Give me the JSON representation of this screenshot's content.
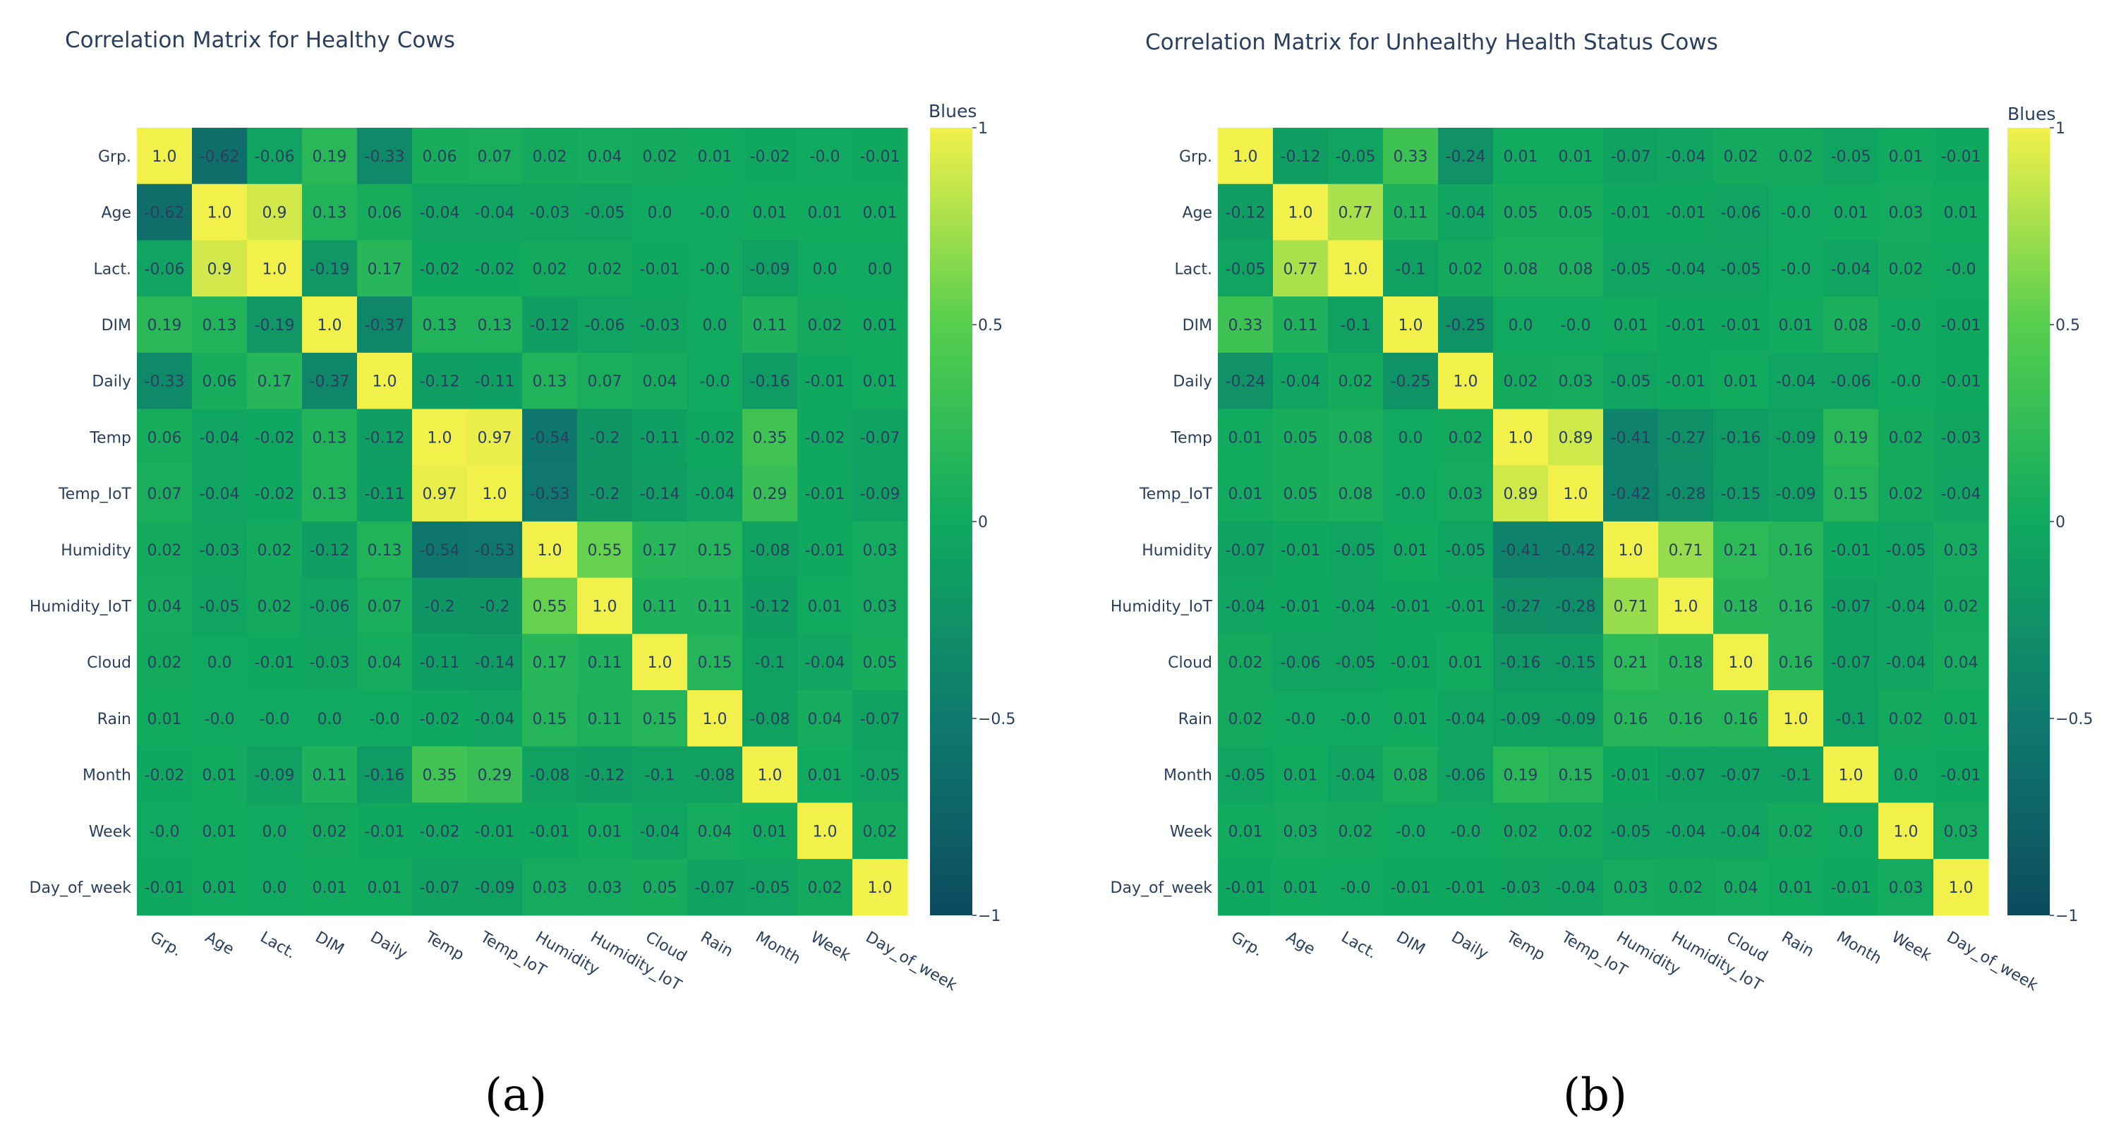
{
  "chart_data": [
    {
      "type": "heatmap",
      "title": "Correlation Matrix for Healthy Cows",
      "panel_label": "(a)",
      "colorscale_name": "Blues",
      "zlim": [
        -1,
        1
      ],
      "colorbar_ticks": [
        {
          "value": 1,
          "label": "1"
        },
        {
          "value": 0.5,
          "label": "0.5"
        },
        {
          "value": 0,
          "label": "0"
        },
        {
          "value": -0.5,
          "label": "−0.5"
        },
        {
          "value": -1,
          "label": "−1"
        }
      ],
      "labels": [
        "Grp.",
        "Age",
        "Lact.",
        "DIM",
        "Daily",
        "Temp",
        "Temp_IoT",
        "Humidity",
        "Humidity_IoT",
        "Cloud",
        "Rain",
        "Month",
        "Week",
        "Day_of_week"
      ],
      "matrix": [
        [
          1.0,
          -0.62,
          -0.06,
          0.19,
          -0.33,
          0.06,
          0.07,
          0.02,
          0.04,
          0.02,
          0.01,
          -0.02,
          -0.0,
          -0.01
        ],
        [
          -0.62,
          1.0,
          0.9,
          0.13,
          0.06,
          -0.04,
          -0.04,
          -0.03,
          -0.05,
          0.0,
          -0.0,
          0.01,
          0.01,
          0.01
        ],
        [
          -0.06,
          0.9,
          1.0,
          -0.19,
          0.17,
          -0.02,
          -0.02,
          0.02,
          0.02,
          -0.01,
          -0.0,
          -0.09,
          0.0,
          0.0
        ],
        [
          0.19,
          0.13,
          -0.19,
          1.0,
          -0.37,
          0.13,
          0.13,
          -0.12,
          -0.06,
          -0.03,
          0.0,
          0.11,
          0.02,
          0.01
        ],
        [
          -0.33,
          0.06,
          0.17,
          -0.37,
          1.0,
          -0.12,
          -0.11,
          0.13,
          0.07,
          0.04,
          -0.0,
          -0.16,
          -0.01,
          0.01
        ],
        [
          0.06,
          -0.04,
          -0.02,
          0.13,
          -0.12,
          1.0,
          0.97,
          -0.54,
          -0.2,
          -0.11,
          -0.02,
          0.35,
          -0.02,
          -0.07
        ],
        [
          0.07,
          -0.04,
          -0.02,
          0.13,
          -0.11,
          0.97,
          1.0,
          -0.53,
          -0.2,
          -0.14,
          -0.04,
          0.29,
          -0.01,
          -0.09
        ],
        [
          0.02,
          -0.03,
          0.02,
          -0.12,
          0.13,
          -0.54,
          -0.53,
          1.0,
          0.55,
          0.17,
          0.15,
          -0.08,
          -0.01,
          0.03
        ],
        [
          0.04,
          -0.05,
          0.02,
          -0.06,
          0.07,
          -0.2,
          -0.2,
          0.55,
          1.0,
          0.11,
          0.11,
          -0.12,
          0.01,
          0.03
        ],
        [
          0.02,
          0.0,
          -0.01,
          -0.03,
          0.04,
          -0.11,
          -0.14,
          0.17,
          0.11,
          1.0,
          0.15,
          -0.1,
          -0.04,
          0.05
        ],
        [
          0.01,
          -0.0,
          -0.0,
          0.0,
          -0.0,
          -0.02,
          -0.04,
          0.15,
          0.11,
          0.15,
          1.0,
          -0.08,
          0.04,
          -0.07
        ],
        [
          -0.02,
          0.01,
          -0.09,
          0.11,
          -0.16,
          0.35,
          0.29,
          -0.08,
          -0.12,
          -0.1,
          -0.08,
          1.0,
          0.01,
          -0.05
        ],
        [
          -0.0,
          0.01,
          0.0,
          0.02,
          -0.01,
          -0.02,
          -0.01,
          -0.01,
          0.01,
          -0.04,
          0.04,
          0.01,
          1.0,
          0.02
        ],
        [
          -0.01,
          0.01,
          0.0,
          0.01,
          0.01,
          -0.07,
          -0.09,
          0.03,
          0.03,
          0.05,
          -0.07,
          -0.05,
          0.02,
          1.0
        ]
      ]
    },
    {
      "type": "heatmap",
      "title": "Correlation Matrix for Unhealthy Health Status Cows",
      "panel_label": "(b)",
      "colorscale_name": "Blues",
      "zlim": [
        -1,
        1
      ],
      "colorbar_ticks": [
        {
          "value": 1,
          "label": "1"
        },
        {
          "value": 0.5,
          "label": "0.5"
        },
        {
          "value": 0,
          "label": "0"
        },
        {
          "value": -0.5,
          "label": "−0.5"
        },
        {
          "value": -1,
          "label": "−1"
        }
      ],
      "labels": [
        "Grp.",
        "Age",
        "Lact.",
        "DIM",
        "Daily",
        "Temp",
        "Temp_IoT",
        "Humidity",
        "Humidity_IoT",
        "Cloud",
        "Rain",
        "Month",
        "Week",
        "Day_of_week"
      ],
      "matrix": [
        [
          1.0,
          -0.12,
          -0.05,
          0.33,
          -0.24,
          0.01,
          0.01,
          -0.07,
          -0.04,
          0.02,
          0.02,
          -0.05,
          0.01,
          -0.01
        ],
        [
          -0.12,
          1.0,
          0.77,
          0.11,
          -0.04,
          0.05,
          0.05,
          -0.01,
          -0.01,
          -0.06,
          -0.0,
          0.01,
          0.03,
          0.01
        ],
        [
          -0.05,
          0.77,
          1.0,
          -0.1,
          0.02,
          0.08,
          0.08,
          -0.05,
          -0.04,
          -0.05,
          -0.0,
          -0.04,
          0.02,
          -0.0
        ],
        [
          0.33,
          0.11,
          -0.1,
          1.0,
          -0.25,
          0.0,
          -0.0,
          0.01,
          -0.01,
          -0.01,
          0.01,
          0.08,
          -0.0,
          -0.01
        ],
        [
          -0.24,
          -0.04,
          0.02,
          -0.25,
          1.0,
          0.02,
          0.03,
          -0.05,
          -0.01,
          0.01,
          -0.04,
          -0.06,
          -0.0,
          -0.01
        ],
        [
          0.01,
          0.05,
          0.08,
          0.0,
          0.02,
          1.0,
          0.89,
          -0.41,
          -0.27,
          -0.16,
          -0.09,
          0.19,
          0.02,
          -0.03
        ],
        [
          0.01,
          0.05,
          0.08,
          -0.0,
          0.03,
          0.89,
          1.0,
          -0.42,
          -0.28,
          -0.15,
          -0.09,
          0.15,
          0.02,
          -0.04
        ],
        [
          -0.07,
          -0.01,
          -0.05,
          0.01,
          -0.05,
          -0.41,
          -0.42,
          1.0,
          0.71,
          0.21,
          0.16,
          -0.01,
          -0.05,
          0.03
        ],
        [
          -0.04,
          -0.01,
          -0.04,
          -0.01,
          -0.01,
          -0.27,
          -0.28,
          0.71,
          1.0,
          0.18,
          0.16,
          -0.07,
          -0.04,
          0.02
        ],
        [
          0.02,
          -0.06,
          -0.05,
          -0.01,
          0.01,
          -0.16,
          -0.15,
          0.21,
          0.18,
          1.0,
          0.16,
          -0.07,
          -0.04,
          0.04
        ],
        [
          0.02,
          -0.0,
          -0.0,
          0.01,
          -0.04,
          -0.09,
          -0.09,
          0.16,
          0.16,
          0.16,
          1.0,
          -0.1,
          0.02,
          0.01
        ],
        [
          -0.05,
          0.01,
          -0.04,
          0.08,
          -0.06,
          0.19,
          0.15,
          -0.01,
          -0.07,
          -0.07,
          -0.1,
          1.0,
          0.0,
          -0.01
        ],
        [
          0.01,
          0.03,
          0.02,
          -0.0,
          -0.0,
          0.02,
          0.02,
          -0.05,
          -0.04,
          -0.04,
          0.02,
          0.0,
          1.0,
          0.03
        ],
        [
          -0.01,
          0.01,
          -0.0,
          -0.01,
          -0.01,
          -0.03,
          -0.04,
          0.03,
          0.02,
          0.04,
          0.01,
          -0.01,
          0.03,
          1.0
        ]
      ]
    }
  ]
}
